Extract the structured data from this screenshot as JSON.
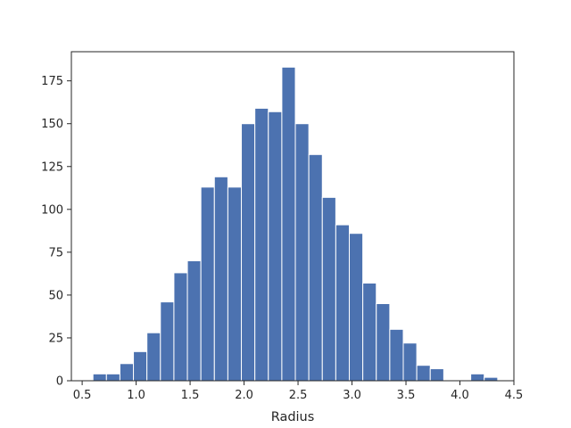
{
  "chart_data": {
    "type": "histogram",
    "title": "",
    "xlabel": "Radius",
    "ylabel": "",
    "xlim": [
      0.4,
      4.5
    ],
    "ylim": [
      0,
      192
    ],
    "xticks": [
      0.5,
      1.0,
      1.5,
      2.0,
      2.5,
      3.0,
      3.5,
      4.0,
      4.5
    ],
    "xtick_labels": [
      "0.5",
      "1.0",
      "1.5",
      "2.0",
      "2.5",
      "3.0",
      "3.5",
      "4.0",
      "4.5"
    ],
    "yticks": [
      0,
      25,
      50,
      75,
      100,
      125,
      150,
      175
    ],
    "ytick_labels": [
      "0",
      "25",
      "50",
      "75",
      "100",
      "125",
      "150",
      "175"
    ],
    "grid": false,
    "bar_color": "#4c72b0",
    "bins": [
      {
        "x0": 0.6,
        "x1": 0.725,
        "count": 4
      },
      {
        "x0": 0.725,
        "x1": 0.85,
        "count": 4
      },
      {
        "x0": 0.85,
        "x1": 0.975,
        "count": 10
      },
      {
        "x0": 0.975,
        "x1": 1.1,
        "count": 17
      },
      {
        "x0": 1.1,
        "x1": 1.225,
        "count": 28
      },
      {
        "x0": 1.225,
        "x1": 1.35,
        "count": 46
      },
      {
        "x0": 1.35,
        "x1": 1.475,
        "count": 63
      },
      {
        "x0": 1.475,
        "x1": 1.6,
        "count": 70
      },
      {
        "x0": 1.6,
        "x1": 1.725,
        "count": 113
      },
      {
        "x0": 1.725,
        "x1": 1.85,
        "count": 119
      },
      {
        "x0": 1.85,
        "x1": 1.975,
        "count": 113
      },
      {
        "x0": 1.975,
        "x1": 2.1,
        "count": 150
      },
      {
        "x0": 2.1,
        "x1": 2.225,
        "count": 159
      },
      {
        "x0": 2.225,
        "x1": 2.35,
        "count": 157
      },
      {
        "x0": 2.35,
        "x1": 2.475,
        "count": 183
      },
      {
        "x0": 2.475,
        "x1": 2.6,
        "count": 150
      },
      {
        "x0": 2.6,
        "x1": 2.725,
        "count": 132
      },
      {
        "x0": 2.725,
        "x1": 2.85,
        "count": 107
      },
      {
        "x0": 2.85,
        "x1": 2.975,
        "count": 91
      },
      {
        "x0": 2.975,
        "x1": 3.1,
        "count": 86
      },
      {
        "x0": 3.1,
        "x1": 3.225,
        "count": 57
      },
      {
        "x0": 3.225,
        "x1": 3.35,
        "count": 45
      },
      {
        "x0": 3.35,
        "x1": 3.475,
        "count": 30
      },
      {
        "x0": 3.475,
        "x1": 3.6,
        "count": 22
      },
      {
        "x0": 3.6,
        "x1": 3.725,
        "count": 9
      },
      {
        "x0": 3.725,
        "x1": 3.85,
        "count": 7
      },
      {
        "x0": 3.85,
        "x1": 3.975,
        "count": 0
      },
      {
        "x0": 3.975,
        "x1": 4.1,
        "count": 0
      },
      {
        "x0": 4.1,
        "x1": 4.225,
        "count": 4
      },
      {
        "x0": 4.225,
        "x1": 4.35,
        "count": 2
      }
    ]
  }
}
